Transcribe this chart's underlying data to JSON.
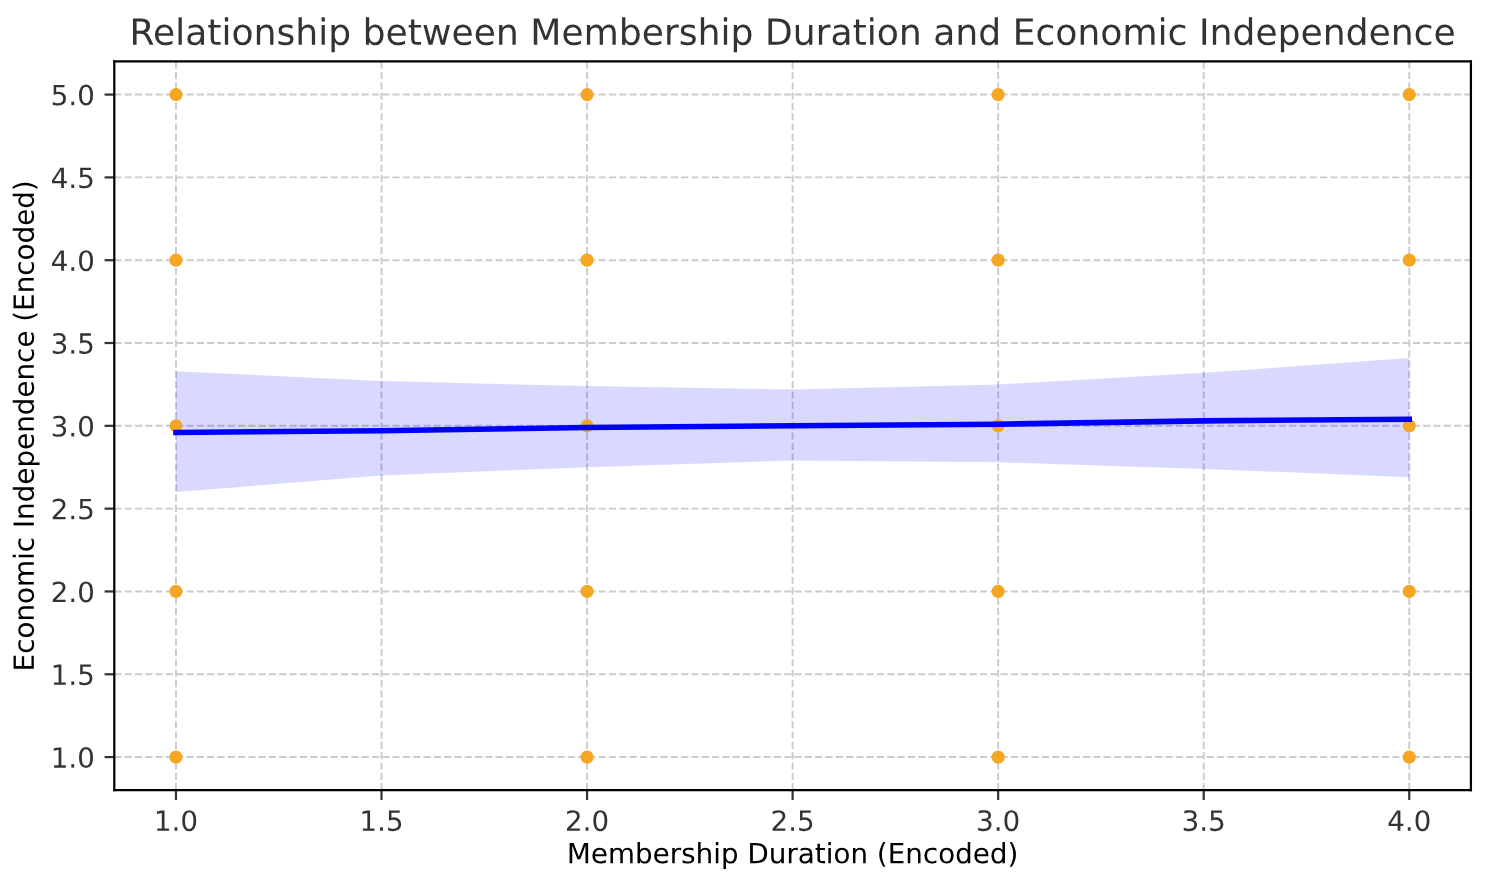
{
  "chart_data": {
    "type": "scatter",
    "title": "Relationship between Membership Duration and Economic Independence",
    "xlabel": "Membership Duration (Encoded)",
    "ylabel": "Economic Independence (Encoded)",
    "xlim": [
      0.85,
      4.15
    ],
    "ylim": [
      0.8,
      5.2
    ],
    "xticks": [
      {
        "value": 1,
        "label": "1.0"
      },
      {
        "value": 1.5,
        "label": "1.5"
      },
      {
        "value": 2,
        "label": "2.0"
      },
      {
        "value": 2.5,
        "label": "2.5"
      },
      {
        "value": 3,
        "label": "3.0"
      },
      {
        "value": 3.5,
        "label": "3.5"
      },
      {
        "value": 4,
        "label": "4.0"
      }
    ],
    "yticks": [
      {
        "value": 1,
        "label": "1.0"
      },
      {
        "value": 1.5,
        "label": "1.5"
      },
      {
        "value": 2,
        "label": "2.0"
      },
      {
        "value": 2.5,
        "label": "2.5"
      },
      {
        "value": 3,
        "label": "3.0"
      },
      {
        "value": 3.5,
        "label": "3.5"
      },
      {
        "value": 4,
        "label": "4.0"
      },
      {
        "value": 4.5,
        "label": "4.5"
      },
      {
        "value": 5,
        "label": "5.0"
      }
    ],
    "grid": true,
    "series": [
      {
        "color": "#f5a623",
        "marker": "circle",
        "x": [
          1,
          1,
          1,
          1,
          1,
          2,
          2,
          2,
          2,
          2,
          3,
          3,
          3,
          3,
          3,
          4,
          4,
          4,
          4,
          4
        ],
        "values": [
          1,
          2,
          3,
          4,
          5,
          1,
          2,
          3,
          4,
          5,
          1,
          2,
          3,
          4,
          5,
          1,
          2,
          3,
          4,
          5
        ]
      },
      {
        "type": "line",
        "color": "#0000ff",
        "x": [
          1,
          1.5,
          2,
          2.5,
          3,
          3.5,
          4
        ],
        "values": [
          2.96,
          2.97,
          2.99,
          3.0,
          3.01,
          3.03,
          3.04
        ],
        "lower": [
          2.6,
          2.7,
          2.75,
          2.79,
          2.78,
          2.74,
          2.69
        ],
        "upper": [
          3.33,
          3.27,
          3.24,
          3.22,
          3.25,
          3.32,
          3.41
        ]
      }
    ]
  }
}
